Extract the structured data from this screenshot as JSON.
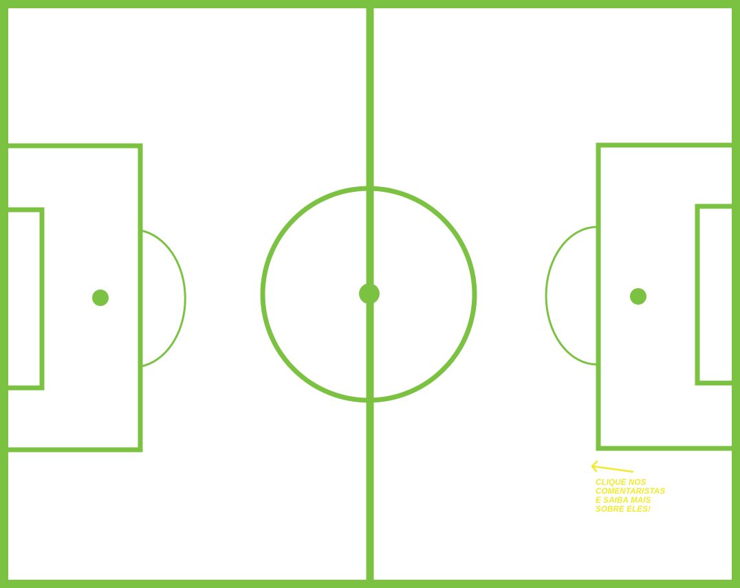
{
  "pitch": {
    "line_color": "#7cc242",
    "background_color": "#ffffff"
  },
  "hint": {
    "color": "#f2ea2c",
    "lines": [
      "CLIQUE NOS",
      "COMENTARISTAS",
      "E SAIBA MAIS",
      "SOBRE ELES!"
    ],
    "arrow_icon": "arrow-left-icon"
  }
}
